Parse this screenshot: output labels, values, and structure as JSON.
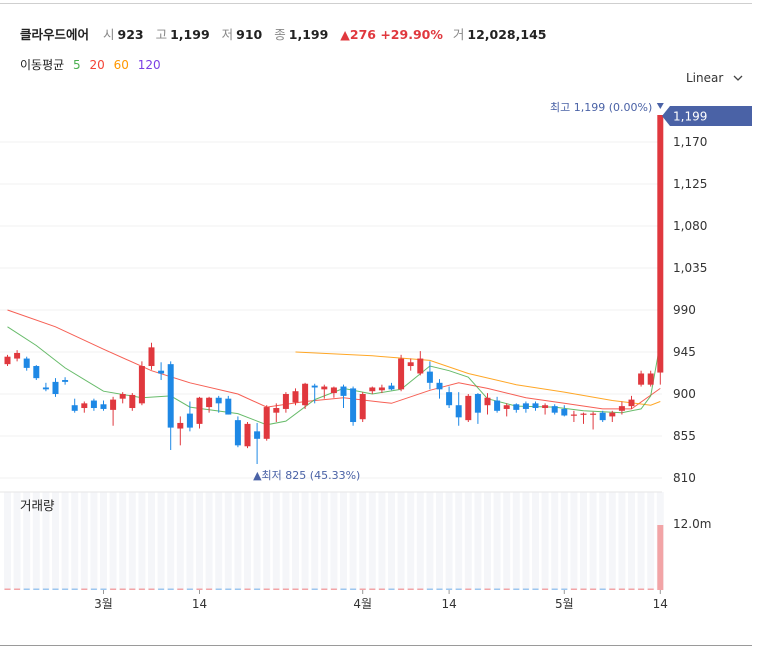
{
  "header": {
    "name": "클라우드에어",
    "open_label": "시",
    "open": "923",
    "high_label": "고",
    "high": "1,199",
    "low_label": "저",
    "low": "910",
    "close_label": "종",
    "close": "1,199",
    "change": "▲276 +29.90%",
    "volume_label": "거",
    "volume": "12,028,145"
  },
  "ma": {
    "label": "이동평균",
    "p5": "5",
    "p20": "20",
    "p60": "60",
    "p120": "120"
  },
  "scale_label": "Linear",
  "scale_icon": "chevron-down-icon",
  "colors": {
    "up": "#e0383e",
    "down": "#1e88e5",
    "ma5": "#4caf50",
    "ma20": "#f44336",
    "ma60": "#ff9800",
    "ma120": "#7b3fe4",
    "badge": "#4a62a6"
  },
  "chart_data": {
    "type": "candlestick",
    "ylim": [
      795,
      1210
    ],
    "y_ticks": [
      "1,170",
      "1,125",
      "1,080",
      "1,035",
      "990",
      "945",
      "900",
      "855",
      "810"
    ],
    "x_tick_labels": [
      {
        "i": 10,
        "label": "3월"
      },
      {
        "i": 20,
        "label": "14"
      },
      {
        "i": 37,
        "label": "4월"
      },
      {
        "i": 46,
        "label": "14"
      },
      {
        "i": 58,
        "label": "5월"
      },
      {
        "i": 68,
        "label": "14"
      }
    ],
    "candles": [
      {
        "o": 932,
        "h": 942,
        "l": 930,
        "c": 940
      },
      {
        "o": 938,
        "h": 947,
        "l": 935,
        "c": 944
      },
      {
        "o": 938,
        "h": 940,
        "l": 925,
        "c": 928
      },
      {
        "o": 930,
        "h": 931,
        "l": 915,
        "c": 917
      },
      {
        "o": 907,
        "h": 912,
        "l": 903,
        "c": 905
      },
      {
        "o": 913,
        "h": 917,
        "l": 897,
        "c": 900
      },
      {
        "o": 915,
        "h": 918,
        "l": 910,
        "c": 913
      },
      {
        "o": 888,
        "h": 895,
        "l": 880,
        "c": 882
      },
      {
        "o": 885,
        "h": 892,
        "l": 880,
        "c": 890
      },
      {
        "o": 893,
        "h": 895,
        "l": 882,
        "c": 885
      },
      {
        "o": 889,
        "h": 893,
        "l": 882,
        "c": 884
      },
      {
        "o": 883,
        "h": 897,
        "l": 866,
        "c": 894
      },
      {
        "o": 895,
        "h": 902,
        "l": 890,
        "c": 900
      },
      {
        "o": 885,
        "h": 901,
        "l": 882,
        "c": 899
      },
      {
        "o": 890,
        "h": 935,
        "l": 888,
        "c": 930
      },
      {
        "o": 930,
        "h": 955,
        "l": 926,
        "c": 950
      },
      {
        "o": 925,
        "h": 934,
        "l": 915,
        "c": 922
      },
      {
        "o": 932,
        "h": 935,
        "l": 840,
        "c": 864
      },
      {
        "o": 863,
        "h": 876,
        "l": 845,
        "c": 869
      },
      {
        "o": 879,
        "h": 892,
        "l": 860,
        "c": 864
      },
      {
        "o": 868,
        "h": 897,
        "l": 863,
        "c": 896
      },
      {
        "o": 886,
        "h": 897,
        "l": 880,
        "c": 896
      },
      {
        "o": 896,
        "h": 898,
        "l": 880,
        "c": 890
      },
      {
        "o": 895,
        "h": 898,
        "l": 878,
        "c": 878
      },
      {
        "o": 872,
        "h": 876,
        "l": 843,
        "c": 845
      },
      {
        "o": 844,
        "h": 870,
        "l": 842,
        "c": 868
      },
      {
        "o": 860,
        "h": 869,
        "l": 825,
        "c": 852
      },
      {
        "o": 852,
        "h": 888,
        "l": 850,
        "c": 886
      },
      {
        "o": 880,
        "h": 890,
        "l": 870,
        "c": 885
      },
      {
        "o": 884,
        "h": 902,
        "l": 880,
        "c": 900
      },
      {
        "o": 891,
        "h": 906,
        "l": 888,
        "c": 903
      },
      {
        "o": 888,
        "h": 912,
        "l": 884,
        "c": 911
      },
      {
        "o": 909,
        "h": 911,
        "l": 890,
        "c": 907
      },
      {
        "o": 905,
        "h": 910,
        "l": 895,
        "c": 908
      },
      {
        "o": 901,
        "h": 908,
        "l": 896,
        "c": 907
      },
      {
        "o": 908,
        "h": 910,
        "l": 885,
        "c": 898
      },
      {
        "o": 906,
        "h": 908,
        "l": 866,
        "c": 870
      },
      {
        "o": 873,
        "h": 902,
        "l": 870,
        "c": 900
      },
      {
        "o": 903,
        "h": 908,
        "l": 900,
        "c": 907
      },
      {
        "o": 904,
        "h": 910,
        "l": 901,
        "c": 907
      },
      {
        "o": 909,
        "h": 912,
        "l": 904,
        "c": 905
      },
      {
        "o": 905,
        "h": 942,
        "l": 903,
        "c": 938
      },
      {
        "o": 930,
        "h": 938,
        "l": 925,
        "c": 934
      },
      {
        "o": 922,
        "h": 946,
        "l": 920,
        "c": 938
      },
      {
        "o": 924,
        "h": 935,
        "l": 905,
        "c": 912
      },
      {
        "o": 912,
        "h": 916,
        "l": 895,
        "c": 905
      },
      {
        "o": 902,
        "h": 908,
        "l": 885,
        "c": 888
      },
      {
        "o": 888,
        "h": 902,
        "l": 866,
        "c": 875
      },
      {
        "o": 872,
        "h": 900,
        "l": 870,
        "c": 898
      },
      {
        "o": 900,
        "h": 901,
        "l": 868,
        "c": 880
      },
      {
        "o": 888,
        "h": 901,
        "l": 878,
        "c": 896
      },
      {
        "o": 893,
        "h": 897,
        "l": 880,
        "c": 882
      },
      {
        "o": 884,
        "h": 890,
        "l": 876,
        "c": 888
      },
      {
        "o": 889,
        "h": 890,
        "l": 880,
        "c": 883
      },
      {
        "o": 890,
        "h": 892,
        "l": 880,
        "c": 884
      },
      {
        "o": 890,
        "h": 892,
        "l": 882,
        "c": 885
      },
      {
        "o": 885,
        "h": 890,
        "l": 878,
        "c": 888
      },
      {
        "o": 887,
        "h": 889,
        "l": 878,
        "c": 880
      },
      {
        "o": 884,
        "h": 888,
        "l": 876,
        "c": 877
      },
      {
        "o": 877,
        "h": 882,
        "l": 870,
        "c": 878
      },
      {
        "o": 878,
        "h": 880,
        "l": 868,
        "c": 879
      },
      {
        "o": 878,
        "h": 881,
        "l": 862,
        "c": 879
      },
      {
        "o": 880,
        "h": 882,
        "l": 870,
        "c": 872
      },
      {
        "o": 876,
        "h": 882,
        "l": 870,
        "c": 880
      },
      {
        "o": 882,
        "h": 892,
        "l": 878,
        "c": 887
      },
      {
        "o": 887,
        "h": 898,
        "l": 884,
        "c": 894
      },
      {
        "o": 910,
        "h": 925,
        "l": 908,
        "c": 922
      },
      {
        "o": 910,
        "h": 925,
        "l": 908,
        "c": 922
      },
      {
        "o": 923,
        "h": 1199,
        "l": 910,
        "c": 1199
      }
    ],
    "ma5": [
      [
        0,
        972
      ],
      [
        3,
        952
      ],
      [
        6,
        928
      ],
      [
        10,
        903
      ],
      [
        14,
        896
      ],
      [
        17,
        898
      ],
      [
        19,
        886
      ],
      [
        24,
        879
      ],
      [
        27,
        867
      ],
      [
        29,
        871
      ],
      [
        32,
        894
      ],
      [
        35,
        906
      ],
      [
        38,
        900
      ],
      [
        41,
        905
      ],
      [
        44,
        930
      ],
      [
        46,
        925
      ],
      [
        48,
        918
      ],
      [
        50,
        895
      ],
      [
        53,
        887
      ],
      [
        57,
        886
      ],
      [
        60,
        882
      ],
      [
        64,
        880
      ],
      [
        66,
        884
      ],
      [
        67,
        898
      ],
      [
        68,
        955
      ]
    ],
    "ma20": [
      [
        0,
        990
      ],
      [
        5,
        972
      ],
      [
        10,
        948
      ],
      [
        15,
        925
      ],
      [
        19,
        912
      ],
      [
        24,
        900
      ],
      [
        27,
        886
      ],
      [
        31,
        892
      ],
      [
        35,
        896
      ],
      [
        40,
        890
      ],
      [
        44,
        904
      ],
      [
        47,
        912
      ],
      [
        50,
        906
      ],
      [
        54,
        896
      ],
      [
        58,
        890
      ],
      [
        62,
        884
      ],
      [
        65,
        884
      ],
      [
        68,
        906
      ]
    ],
    "ma60": [
      [
        30,
        945
      ],
      [
        38,
        941
      ],
      [
        44,
        936
      ],
      [
        48,
        922
      ],
      [
        53,
        910
      ],
      [
        58,
        902
      ],
      [
        63,
        893
      ],
      [
        67,
        888
      ],
      [
        68,
        892
      ]
    ],
    "high_marker": {
      "text": "최고 1,199 (0.00%)",
      "value": 1199,
      "index": 68
    },
    "low_marker": {
      "text": "▲최저 825 (45.33%)",
      "value": 825,
      "index": 26
    },
    "last_price_badge": "1,199",
    "volume": {
      "label": "거래량",
      "tick_label": "12.0m",
      "max": 12028145,
      "last": 12028145
    }
  }
}
